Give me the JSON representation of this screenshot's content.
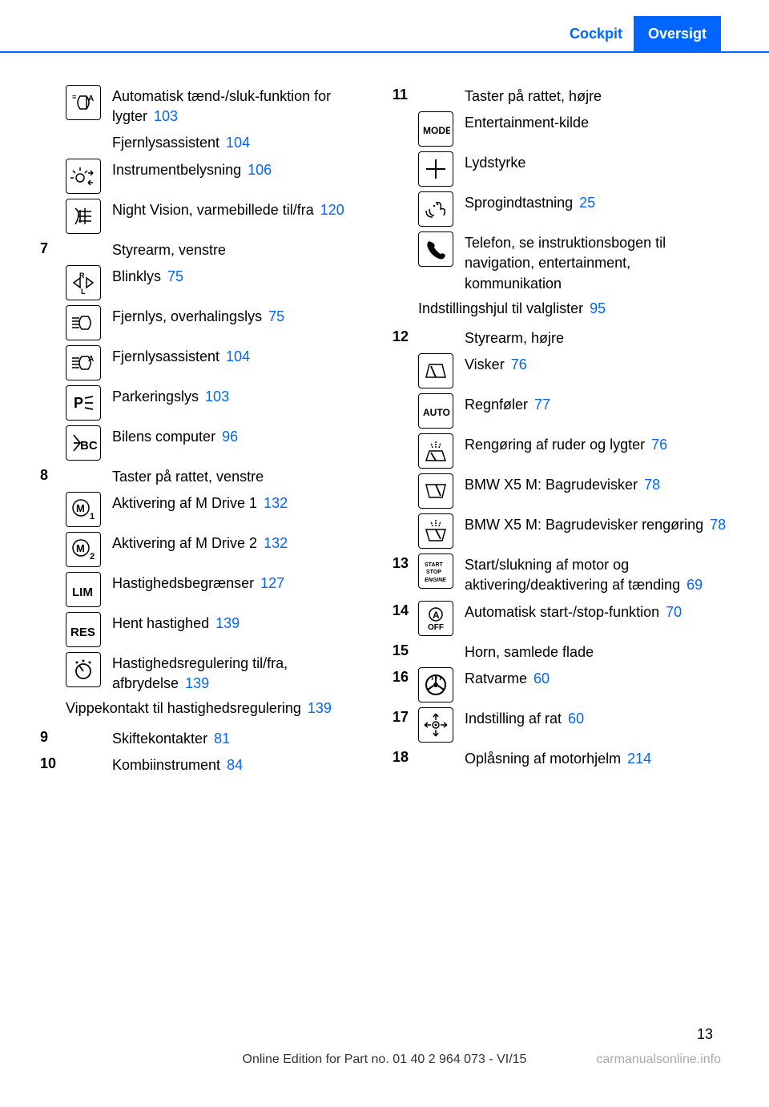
{
  "header": {
    "section": "Cockpit",
    "tab": "Oversigt"
  },
  "left": [
    {
      "icon": "auto-light",
      "text": "Automatisk tænd-/sluk-funktion for lygter",
      "ref": "103"
    },
    {
      "noicon": true,
      "text": "Fjernlysassistent",
      "ref": "104"
    },
    {
      "icon": "instrument-light",
      "text": "Instrumentbelysning",
      "ref": "106"
    },
    {
      "icon": "night-vision",
      "text": "Night Vision, varmebillede til/fra",
      "ref": "120"
    },
    {
      "num": "7",
      "text": "Styrearm, venstre"
    },
    {
      "icon": "blinker",
      "text": "Blinklys",
      "ref": "75"
    },
    {
      "icon": "high-beam",
      "text": "Fjernlys, overhalingslys",
      "ref": "75"
    },
    {
      "icon": "high-beam-assist",
      "text": "Fjernlysassistent",
      "ref": "104"
    },
    {
      "icon": "parking-light",
      "text": "Parkeringslys",
      "ref": "103"
    },
    {
      "icon": "bc",
      "text": "Bilens computer",
      "ref": "96"
    },
    {
      "num": "8",
      "text": "Taster på rattet, venstre"
    },
    {
      "icon": "m1",
      "text": "Aktivering af M Drive 1",
      "ref": "132"
    },
    {
      "icon": "m2",
      "text": "Aktivering af M Drive 2",
      "ref": "132"
    },
    {
      "icon": "lim",
      "text": "Hastighedsbegrænser",
      "ref": "127"
    },
    {
      "icon": "res",
      "text": "Hent hastighed",
      "ref": "139"
    },
    {
      "icon": "cruise",
      "text": "Hastighedsregulering til/fra, afbrydelse",
      "ref": "139"
    },
    {
      "indent": true,
      "text": "Vippekontakt til hastighedsregulering",
      "ref": "139"
    },
    {
      "num": "9",
      "text": "Skiftekontakter",
      "ref": "81"
    },
    {
      "num": "10",
      "text": "Kombiinstrument",
      "ref": "84"
    }
  ],
  "right": [
    {
      "num": "11",
      "text": "Taster på rattet, højre"
    },
    {
      "icon": "mode",
      "text": "Entertainment-kilde"
    },
    {
      "icon": "volume",
      "text": "Lydstyrke"
    },
    {
      "icon": "voice",
      "text": "Sprogindtastning",
      "ref": "25"
    },
    {
      "icon": "phone",
      "text": "Telefon, se instruktionsbogen til navigation, entertainment, kommunikation"
    },
    {
      "indent": true,
      "text": "Indstillingshjul til valglister",
      "ref": "95"
    },
    {
      "num": "12",
      "text": "Styrearm, højre"
    },
    {
      "icon": "wiper",
      "text": "Visker",
      "ref": "76"
    },
    {
      "icon": "auto",
      "text": "Regnføler",
      "ref": "77"
    },
    {
      "icon": "washer",
      "text": "Rengøring af ruder og lygter",
      "ref": "76"
    },
    {
      "icon": "rear-wiper",
      "text": "BMW X5 M: Bagrudevisker",
      "ref": "78"
    },
    {
      "icon": "rear-washer",
      "text": "BMW X5 M: Bagrudevisker rengøring",
      "ref": "78"
    },
    {
      "num": "13",
      "icon": "start-stop",
      "text": "Start/slukning af motor og aktivering/deaktivering af tænding",
      "ref": "69"
    },
    {
      "num": "14",
      "icon": "a-off",
      "text": "Automatisk start-/stop-funktion",
      "ref": "70"
    },
    {
      "num": "15",
      "text": "Horn, samlede flade"
    },
    {
      "num": "16",
      "icon": "wheel-heat",
      "text": "Ratvarme",
      "ref": "60"
    },
    {
      "num": "17",
      "icon": "wheel-adjust",
      "text": "Indstilling af rat",
      "ref": "60"
    },
    {
      "num": "18",
      "text": "Oplåsning af motorhjelm",
      "ref": "214"
    }
  ],
  "footer": "Online Edition for Part no. 01 40 2 964 073 - VI/15",
  "watermark": "carmanualsonline.info",
  "pagenum": "13"
}
